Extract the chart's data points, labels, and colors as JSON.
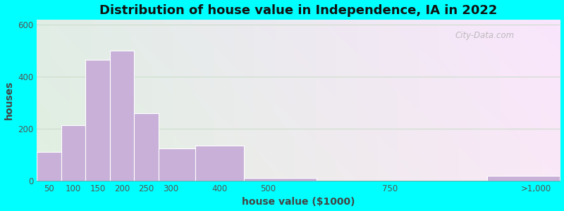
{
  "title": "Distribution of house value in Independence, IA in 2022",
  "xlabel": "house value ($1000)",
  "ylabel": "houses",
  "background_outer": "#00FFFF",
  "bar_color": "#c8b0d8",
  "bar_edgecolor": "#ffffff",
  "values": [
    110,
    215,
    465,
    500,
    260,
    125,
    135,
    10,
    0,
    20
  ],
  "bar_lefts": [
    25,
    75,
    125,
    175,
    225,
    275,
    350,
    450,
    600,
    950
  ],
  "bar_widths": [
    50,
    50,
    50,
    50,
    50,
    75,
    100,
    150,
    350,
    150
  ],
  "xlim": [
    25,
    1100
  ],
  "ylim": [
    0,
    620
  ],
  "yticks": [
    0,
    200,
    400,
    600
  ],
  "xtick_labels": [
    "50",
    "100",
    "150",
    "200",
    "250",
    "300",
    "400",
    "500",
    "750",
    ">1,000"
  ],
  "xtick_positions": [
    50,
    100,
    150,
    200,
    250,
    300,
    400,
    500,
    750,
    1050
  ],
  "title_fontsize": 13,
  "axis_label_fontsize": 10,
  "tick_fontsize": 8.5,
  "watermark": "City-Data.com",
  "grid_color": "#ccddcc",
  "figsize": [
    8.0,
    3.0
  ],
  "dpi": 100
}
